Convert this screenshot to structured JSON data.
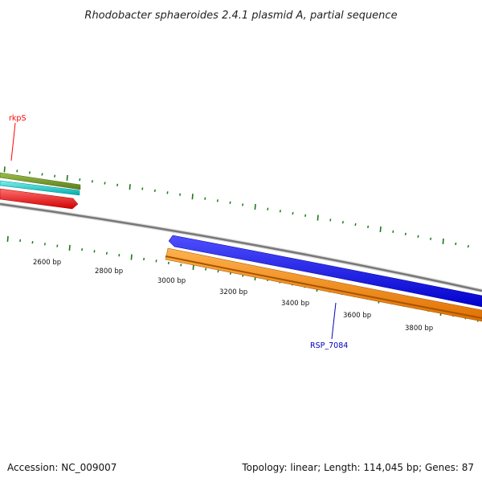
{
  "title": "Rhodobacter sphaeroides 2.4.1 plasmid A, partial sequence",
  "footer": {
    "accession": "Accession: NC_009007",
    "summary": "Topology: linear; Length: 114,045 bp; Genes: 87"
  },
  "scale": {
    "tick_labels": [
      "2600 bp",
      "2800 bp",
      "3000 bp",
      "3200 bp",
      "3400 bp",
      "3600 bp",
      "3800 bp"
    ]
  },
  "genes": [
    {
      "label": "rkpS",
      "color": "#ff0000"
    },
    {
      "label": "RSP_7084",
      "color": "#0000bb"
    }
  ],
  "colors": {
    "backbone": "#888888",
    "tick": "#1a7a1a",
    "feature_olive": "#6b8e23",
    "feature_cyan": "#00c8c8",
    "feature_red": "#ff0000",
    "feature_blue": "#0000ee",
    "feature_orange": "#ff8c00"
  }
}
